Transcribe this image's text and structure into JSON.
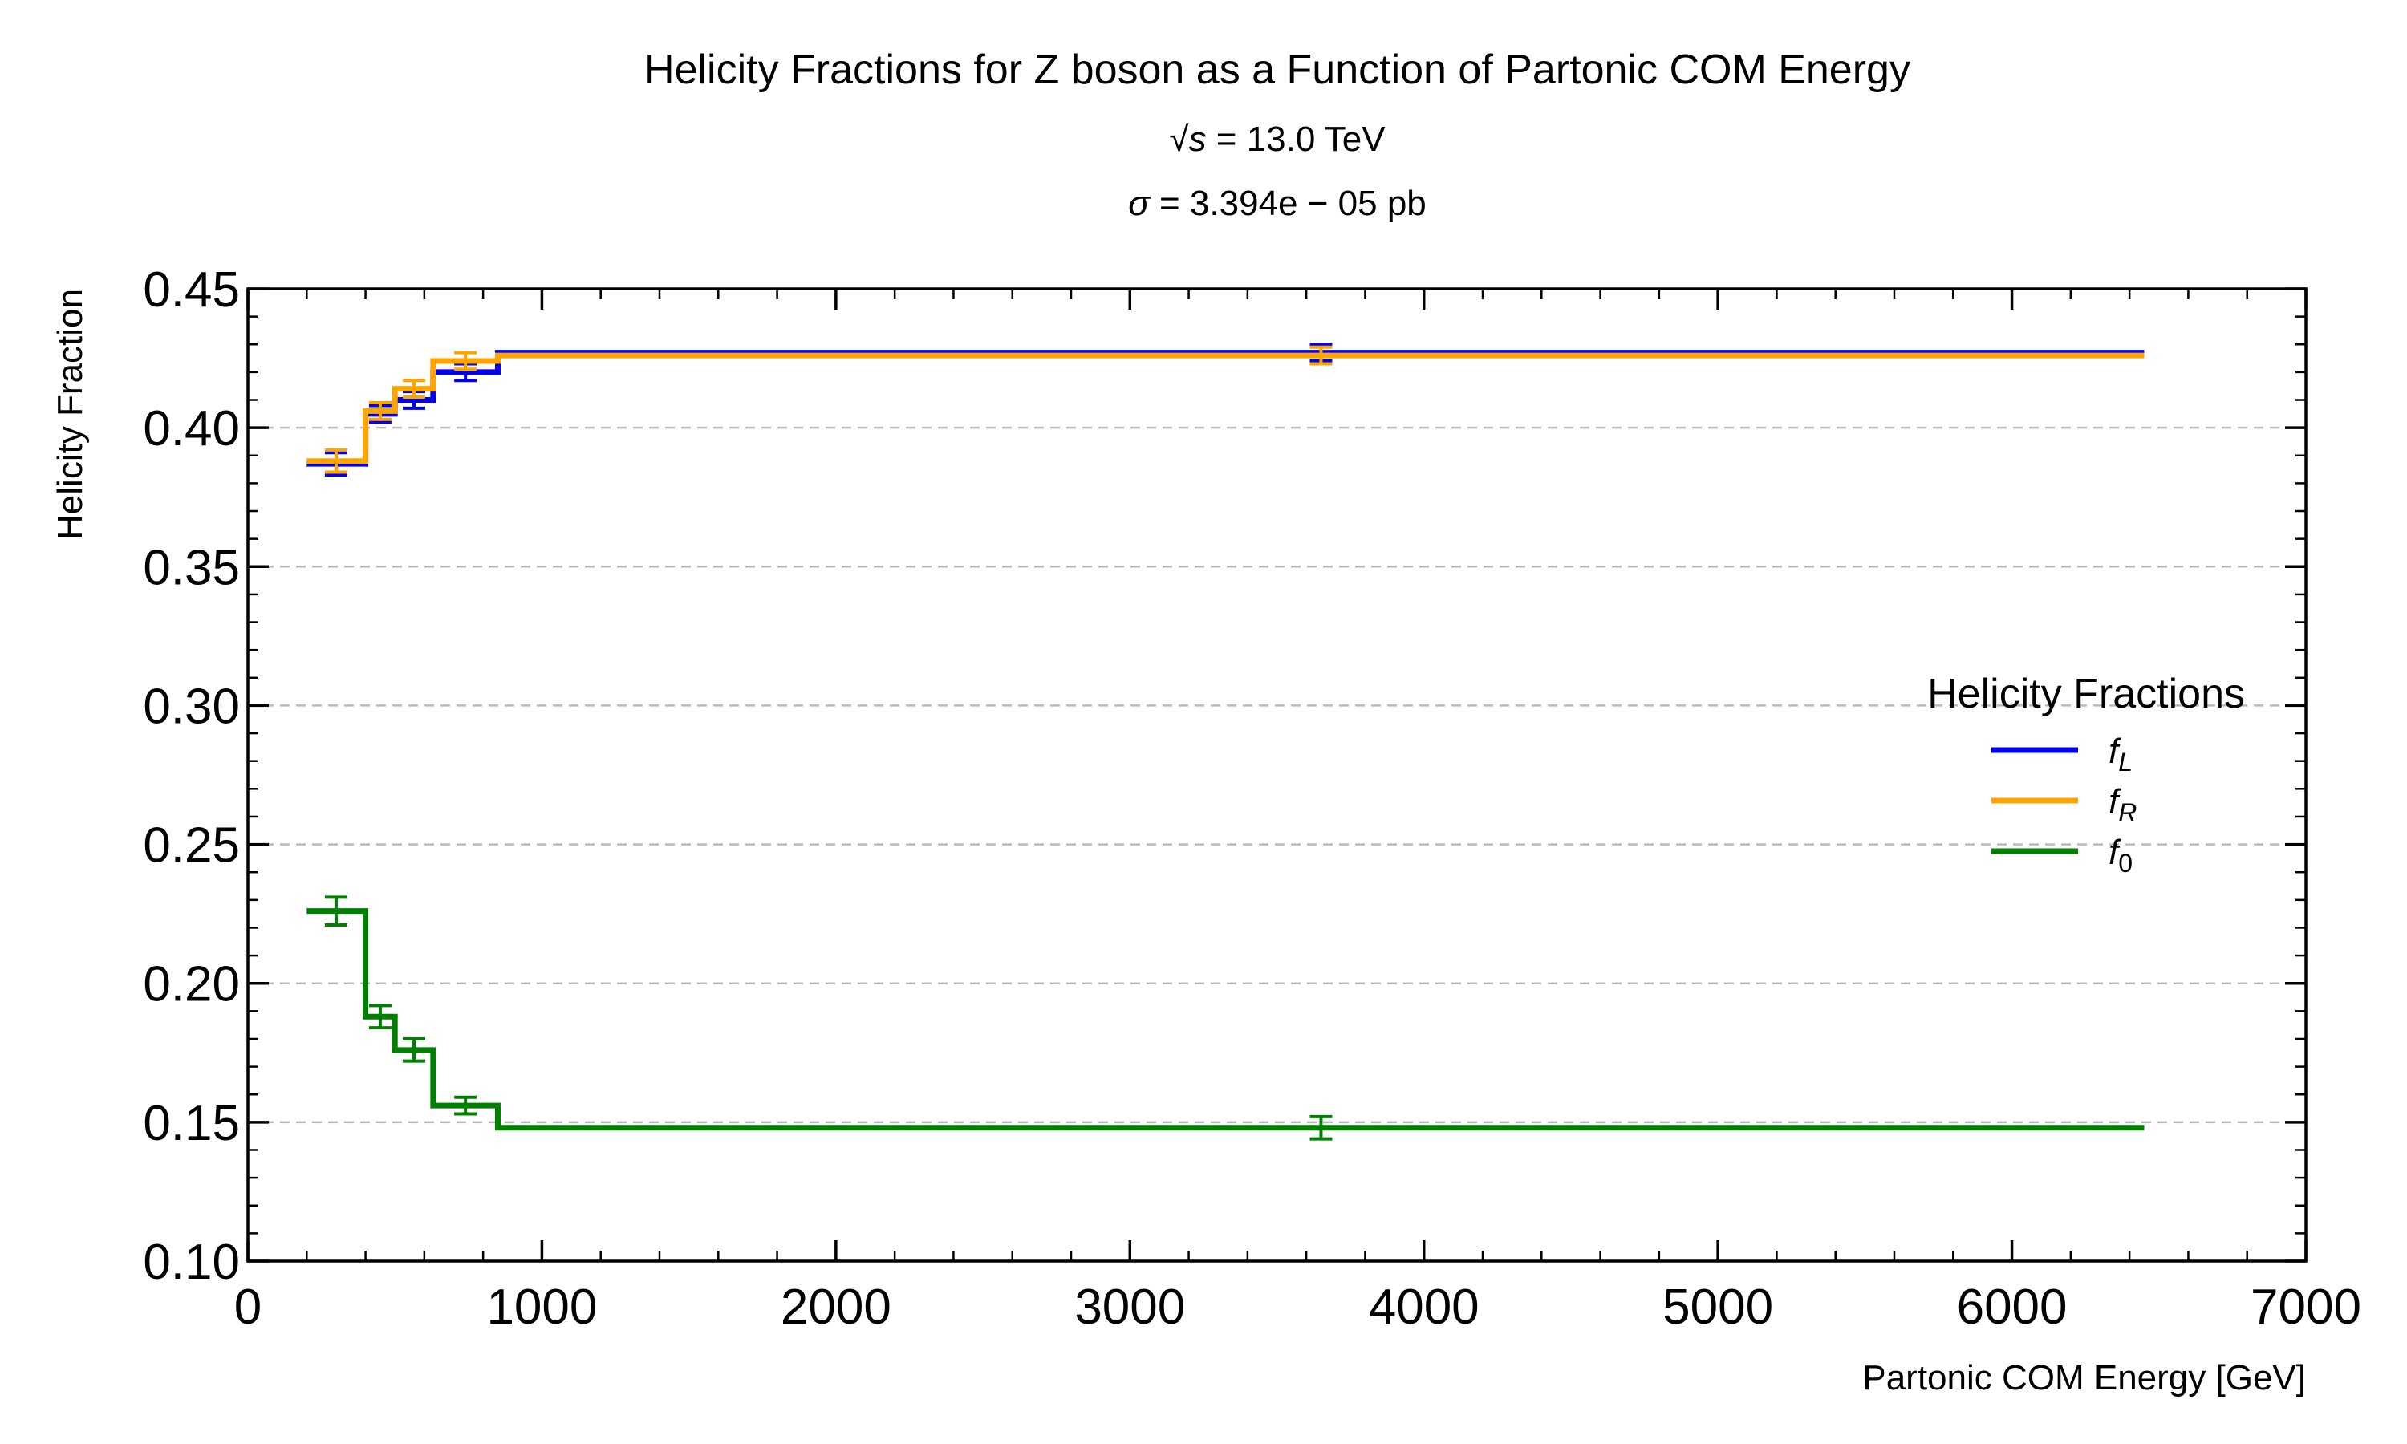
{
  "chart_data": {
    "type": "line",
    "title": "Helicity Fractions for Z boson as a Function of Partonic COM Energy",
    "subtitle_lines": [
      {
        "prefix": "√",
        "var": "s",
        "rest": " = 13.0 TeV"
      },
      {
        "prefix": "",
        "var": "σ",
        "rest": " = 3.394e − 05 pb"
      }
    ],
    "xlabel": "Partonic COM Energy [GeV]",
    "ylabel": "Helicity Fraction",
    "xlim": [
      0,
      7000
    ],
    "ylim": [
      0.1,
      0.45
    ],
    "x_ticks": [
      0,
      1000,
      2000,
      3000,
      4000,
      5000,
      6000,
      7000
    ],
    "x_tick_labels": [
      "0",
      "1000",
      "2000",
      "3000",
      "4000",
      "5000",
      "6000",
      "7000"
    ],
    "y_ticks": [
      0.1,
      0.15,
      0.2,
      0.25,
      0.3,
      0.35,
      0.4,
      0.45
    ],
    "y_tick_labels": [
      "0.10",
      "0.15",
      "0.20",
      "0.25",
      "0.30",
      "0.35",
      "0.40",
      "0.45"
    ],
    "grid": "horizontal-dashed",
    "legend": {
      "title": "Helicity Fractions",
      "position": "center-right"
    },
    "bin_edges": [
      200,
      400,
      500,
      630,
      850,
      6450
    ],
    "bin_centers": [
      300,
      450,
      565,
      740,
      3650
    ],
    "series": [
      {
        "name": "f",
        "sub": "L",
        "color": "#0000ee",
        "values": [
          0.387,
          0.405,
          0.41,
          0.42,
          0.427
        ],
        "errors": [
          0.004,
          0.003,
          0.003,
          0.003,
          0.003
        ]
      },
      {
        "name": "f",
        "sub": "R",
        "color": "#ffa500",
        "values": [
          0.388,
          0.406,
          0.414,
          0.424,
          0.426
        ],
        "errors": [
          0.004,
          0.003,
          0.003,
          0.003,
          0.003
        ]
      },
      {
        "name": "f",
        "sub": "0",
        "color": "#008000",
        "values": [
          0.226,
          0.188,
          0.176,
          0.156,
          0.148
        ],
        "errors": [
          0.005,
          0.004,
          0.004,
          0.003,
          0.004
        ]
      }
    ]
  }
}
